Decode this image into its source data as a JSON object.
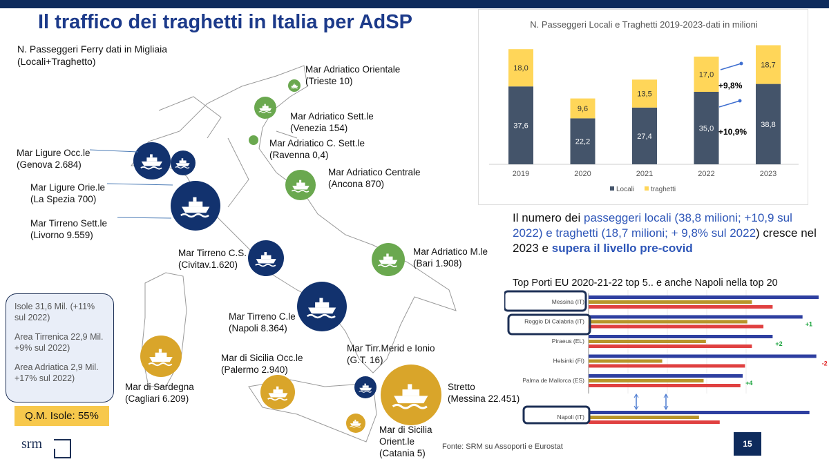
{
  "title": "Il traffico dei traghetti in Italia per AdSP",
  "subtitle": [
    "N. Passeggeri Ferry dati in Migliaia",
    "(Locali+Traghetto)"
  ],
  "ports": [
    {
      "name": "Mar Adriatico Orientale",
      "detail": "(Trieste 10)",
      "color": "green"
    },
    {
      "name": "Mar Adriatico Sett.le",
      "detail": "(Venezia 154)",
      "color": "green"
    },
    {
      "name": "Mar Adriatico C. Sett.le",
      "detail": "(Ravenna 0,4)",
      "color": "green"
    },
    {
      "name": "Mar Ligure Occ.le",
      "detail": "(Genova 2.684)",
      "color": "navy"
    },
    {
      "name": "Mar Ligure Orie.le",
      "detail": "(La Spezia 700)",
      "color": "navy"
    },
    {
      "name": "Mar Tirreno Sett.le",
      "detail": "(Livorno 9.559)",
      "color": "navy"
    },
    {
      "name": "Mar Adriatico Centrale",
      "detail": "(Ancona 870)",
      "color": "green"
    },
    {
      "name": "Mar Tirreno C.S.",
      "detail": "(Civitav.1.620)",
      "color": "navy"
    },
    {
      "name": "Mar Adriatico M.le",
      "detail": "(Bari 1.908)",
      "color": "green"
    },
    {
      "name": "Mar Tirreno C.le",
      "detail": "(Napoli 8.364)",
      "color": "navy"
    },
    {
      "name": "Mar di Sardegna",
      "detail": "(Cagliari 6.209)",
      "color": "gold"
    },
    {
      "name": "Mar di Sicilia Occ.le",
      "detail": "(Palermo 2.940)",
      "color": "gold"
    },
    {
      "name": "Mar Tirr.Merid e Ionio",
      "detail": "(G.T. 16)",
      "color": "navy"
    },
    {
      "name": "Stretto",
      "detail": "(Messina 22.451)",
      "color": "gold"
    },
    {
      "name": "Mar di Sicilia",
      "detail": "Orient.le",
      "detail2": "(Catania 5)",
      "color": "gold"
    }
  ],
  "summary": {
    "isole": [
      "Isole 31,6 Mil. (+11%",
      "sul 2022)"
    ],
    "tirrenica": [
      "Area Tirrenica 22,9 Mil.",
      "+9% sul 2022)"
    ],
    "adriatica": [
      "Area Adriatica 2,9 Mil.",
      "+17% sul 2022)"
    ],
    "qm": "Q.M. Isole: 55%"
  },
  "info": {
    "p1": "Il numero dei ",
    "p2": "passeggeri locali (38,8 milioni; +10,9 sul 2022) e traghetti (18,7 milioni; + 9,8% sul 2022",
    "p3": ") cresce nel 2023 e ",
    "p4": "supera il livello pre-covid"
  },
  "logo": "srm",
  "source": "Fonte: SRM su Assoporti e Eurostat",
  "page_number": "15",
  "chart_data": [
    {
      "type": "bar",
      "stacked": true,
      "title": "N. Passeggeri Locali e Traghetti 2019-2023-dati in milioni",
      "categories": [
        "2019",
        "2020",
        "2021",
        "2022",
        "2023"
      ],
      "series": [
        {
          "name": "Locali",
          "values": [
            37.6,
            22.2,
            27.4,
            35.0,
            38.8
          ],
          "labels": [
            "37,6",
            "22,2",
            "27,4",
            "35,0",
            "38,8"
          ],
          "color": "#44546a"
        },
        {
          "name": "traghetti",
          "values": [
            18.0,
            9.6,
            13.5,
            17.0,
            18.7
          ],
          "labels": [
            "18,0",
            "9,6",
            "13,5",
            "17,0",
            "18,7"
          ],
          "color": "#ffd659"
        }
      ],
      "annotations": [
        "+9,8%",
        "+10,9%"
      ],
      "ylim": [
        0,
        60
      ],
      "legend": "bottom"
    },
    {
      "type": "bar",
      "orientation": "horizontal",
      "title": "Top Porti EU 2020-21-22 top 5.. e anche Napoli nella top 20",
      "categories": [
        "Messina (IT)",
        "Reggio Di Calabria (IT)",
        "Piraeus (EL)",
        "Helsinki (FI)",
        "Palma de Mallorca (ES)",
        "Napoli (IT)"
      ],
      "series": [
        {
          "name": "2022",
          "color": "#2e3fa0",
          "values": [
            100,
            93,
            80,
            99,
            67,
            96
          ]
        },
        {
          "name": "2021",
          "color": "#b8952a",
          "values": [
            71,
            69,
            51,
            32,
            50,
            48
          ]
        },
        {
          "name": "2020",
          "color": "#e04040",
          "values": [
            80,
            76,
            71,
            68,
            66,
            57
          ]
        }
      ],
      "rank_changes": [
        "",
        "+1",
        "+2",
        "-2",
        "+4",
        ""
      ],
      "xlim": [
        0,
        102
      ]
    }
  ]
}
